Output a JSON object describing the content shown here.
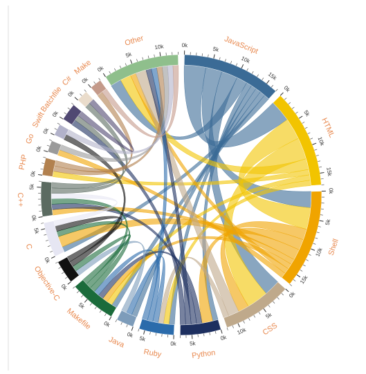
{
  "chart_data": {
    "type": "chord",
    "groups": [
      {
        "name": "JavaScript",
        "color": "#3b6b96"
      },
      {
        "name": "HTML",
        "color": "#f2c400"
      },
      {
        "name": "Shell",
        "color": "#f0a400"
      },
      {
        "name": "CSS",
        "color": "#bfa98b"
      },
      {
        "name": "Python",
        "color": "#1d2f5f"
      },
      {
        "name": "Ruby",
        "color": "#2b6bab"
      },
      {
        "name": "Java",
        "color": "#7d9cba"
      },
      {
        "name": "Makefile",
        "color": "#1b6b3b"
      },
      {
        "name": "Objective-C",
        "color": "#111111"
      },
      {
        "name": "C",
        "color": "#e6e6f3"
      },
      {
        "name": "C++",
        "color": "#5b6b61"
      },
      {
        "name": "PHP",
        "color": "#b2814f"
      },
      {
        "name": "Go",
        "color": "#9a9a9a"
      },
      {
        "name": "Swift",
        "color": "#b2b2ca"
      },
      {
        "name": "Batchfile",
        "color": "#504872"
      },
      {
        "name": "C#",
        "color": "#eadccb"
      },
      {
        "name": "Make",
        "color": "#c49a8a"
      },
      {
        "name": "Other",
        "color": "#8fbf8c"
      }
    ],
    "links": [
      {
        "source": 0,
        "target": 1,
        "value": 4000
      },
      {
        "source": 0,
        "target": 2,
        "value": 3000
      },
      {
        "source": 0,
        "target": 3,
        "value": 3000
      },
      {
        "source": 0,
        "target": 17,
        "value": 2000
      },
      {
        "source": 0,
        "target": 4,
        "value": 1000
      },
      {
        "source": 0,
        "target": 5,
        "value": 1000
      },
      {
        "source": 0,
        "target": 6,
        "value": 1000
      },
      {
        "source": 0,
        "target": 7,
        "value": 1000
      },
      {
        "source": 0,
        "target": 9,
        "value": 1000
      },
      {
        "source": 1,
        "target": 2,
        "value": 4000
      },
      {
        "source": 1,
        "target": 3,
        "value": 4000
      },
      {
        "source": 1,
        "target": 17,
        "value": 2000
      },
      {
        "source": 1,
        "target": 11,
        "value": 1000
      },
      {
        "source": 1,
        "target": 7,
        "value": 1000
      },
      {
        "source": 1,
        "target": 5,
        "value": 1000
      },
      {
        "source": 2,
        "target": 3,
        "value": 2000
      },
      {
        "source": 2,
        "target": 4,
        "value": 2000
      },
      {
        "source": 2,
        "target": 9,
        "value": 2000
      },
      {
        "source": 2,
        "target": 10,
        "value": 1000
      },
      {
        "source": 2,
        "target": 7,
        "value": 1000
      },
      {
        "source": 2,
        "target": 17,
        "value": 1000
      },
      {
        "source": 2,
        "target": 12,
        "value": 1000
      },
      {
        "source": 3,
        "target": 17,
        "value": 2000
      },
      {
        "source": 3,
        "target": 5,
        "value": 1000
      },
      {
        "source": 4,
        "target": 7,
        "value": 1000
      },
      {
        "source": 4,
        "target": 10,
        "value": 1000
      },
      {
        "source": 4,
        "target": 17,
        "value": 1000
      },
      {
        "source": 4,
        "target": 14,
        "value": 1000
      },
      {
        "source": 5,
        "target": 6,
        "value": 1000
      },
      {
        "source": 5,
        "target": 7,
        "value": 1000
      },
      {
        "source": 5,
        "target": 17,
        "value": 1000
      },
      {
        "source": 6,
        "target": 8,
        "value": 1000
      },
      {
        "source": 7,
        "target": 9,
        "value": 1000
      },
      {
        "source": 7,
        "target": 10,
        "value": 1000
      },
      {
        "source": 7,
        "target": 8,
        "value": 1000
      },
      {
        "source": 8,
        "target": 13,
        "value": 1000
      },
      {
        "source": 8,
        "target": 9,
        "value": 1000
      },
      {
        "source": 9,
        "target": 10,
        "value": 1000
      },
      {
        "source": 10,
        "target": 14,
        "value": 1000
      },
      {
        "source": 10,
        "target": 15,
        "value": 1000
      },
      {
        "source": 11,
        "target": 17,
        "value": 1000
      },
      {
        "source": 11,
        "target": 16,
        "value": 1000
      },
      {
        "source": 12,
        "target": 17,
        "value": 1000
      },
      {
        "source": 13,
        "target": 17,
        "value": 1000
      },
      {
        "source": 14,
        "target": 15,
        "value": 1000
      },
      {
        "source": 16,
        "target": 17,
        "value": 1000
      }
    ],
    "ticks": [
      {
        "value": 0,
        "label": "0k"
      },
      {
        "value": 5000,
        "label": "5k"
      },
      {
        "value": 10000,
        "label": "10k"
      },
      {
        "value": 15000,
        "label": "15k"
      }
    ],
    "minor_tick_step": 1000,
    "label_color": "#e8894f"
  }
}
